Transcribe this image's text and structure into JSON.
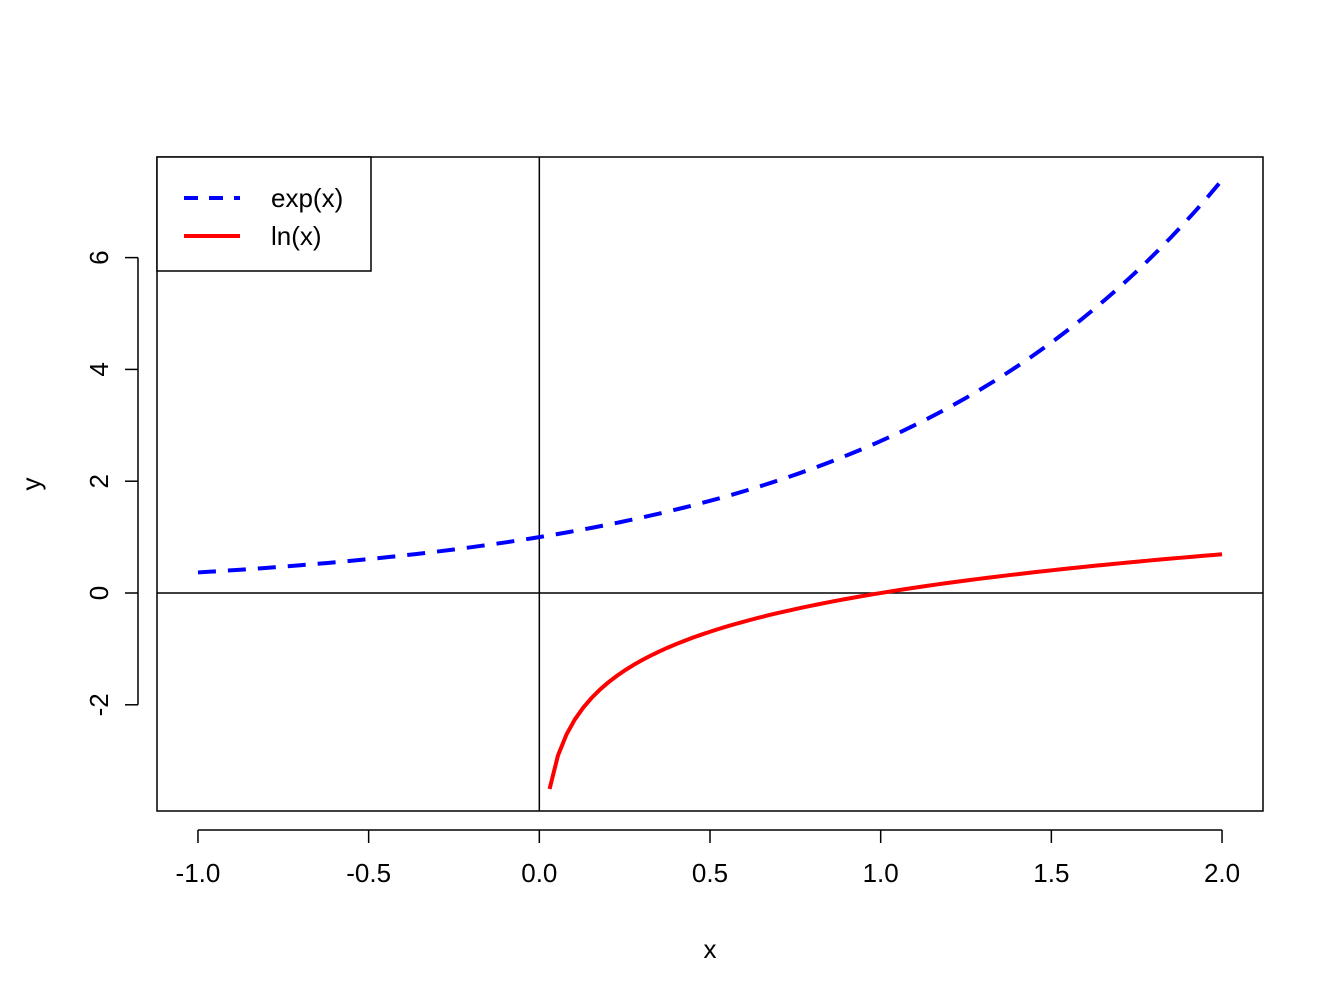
{
  "chart_data": {
    "type": "line",
    "title": "",
    "xlabel": "x",
    "ylabel": "y",
    "xlim": [
      -1.12,
      2.12
    ],
    "ylim": [
      -3.9,
      7.8
    ],
    "x_ticks": [
      -1.0,
      -0.5,
      0.0,
      0.5,
      1.0,
      1.5,
      2.0
    ],
    "x_tick_labels": [
      "-1.0",
      "-0.5",
      "0.0",
      "0.5",
      "1.0",
      "1.5",
      "2.0"
    ],
    "y_ticks": [
      -2,
      0,
      2,
      4,
      6
    ],
    "y_tick_labels": [
      "-2",
      "0",
      "2",
      "4",
      "6"
    ],
    "reference_lines": {
      "x": 0,
      "y": 0,
      "color": "#000000"
    },
    "legend_position": "top-left",
    "series": [
      {
        "name": "exp(x)",
        "function": "exp",
        "x_range": [
          -1.0,
          2.0
        ],
        "color": "#0000ff",
        "line_style": "dashed"
      },
      {
        "name": "ln(x)",
        "function": "ln",
        "x_range": [
          0.03,
          2.0
        ],
        "color": "#ff0000",
        "line_style": "solid"
      }
    ]
  }
}
